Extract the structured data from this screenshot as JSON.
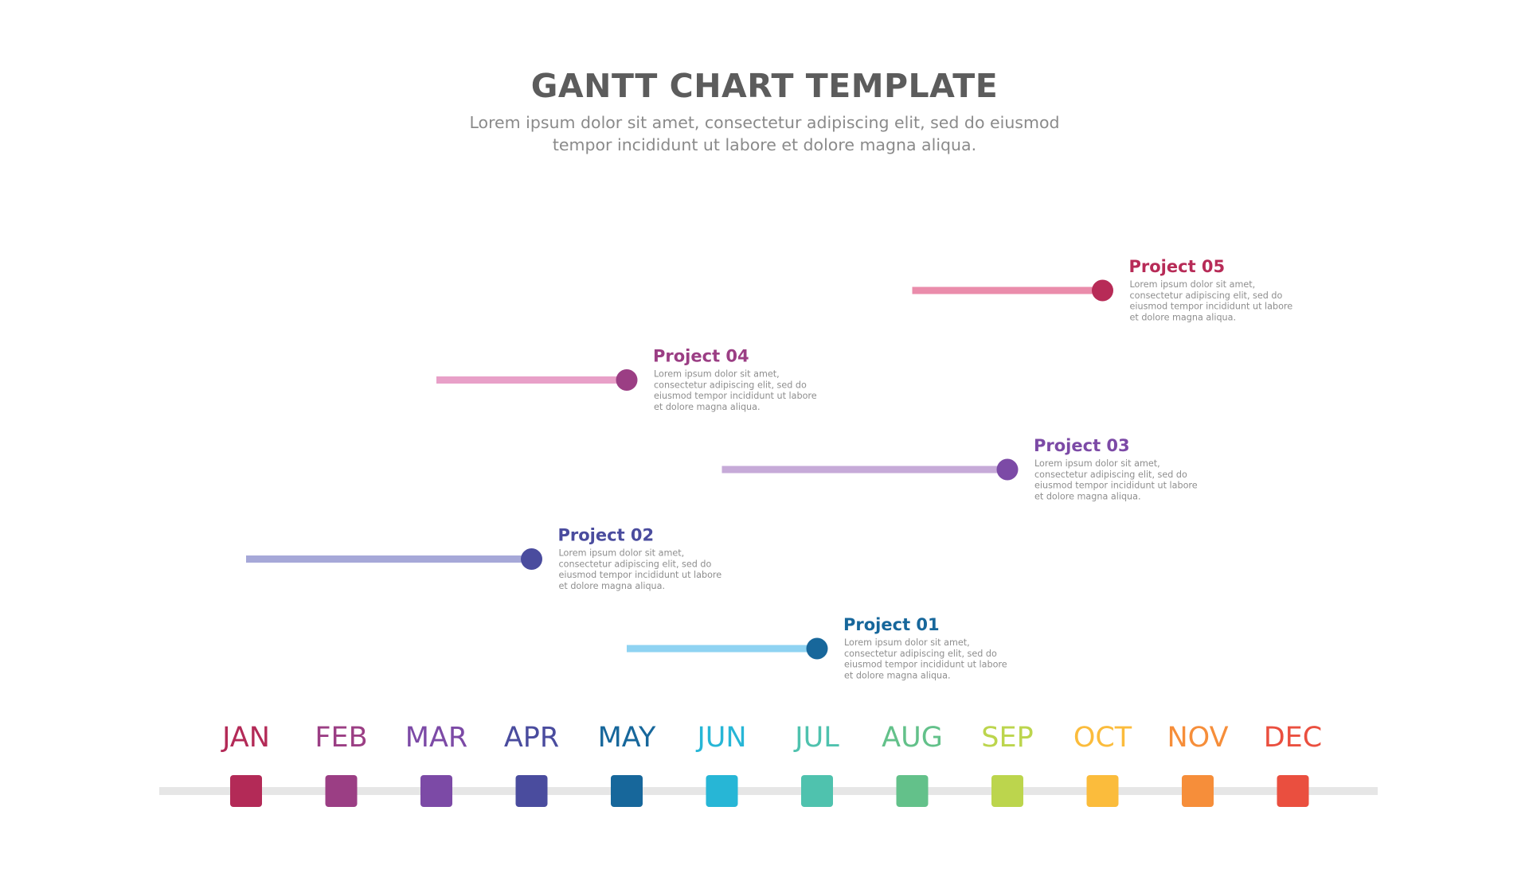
{
  "header": {
    "title": "GANTT CHART TEMPLATE",
    "subtitle": "Lorem ipsum dolor sit amet, consectetur adipiscing elit, sed do eiusmod tempor incididunt ut labore et dolore magna aliqua."
  },
  "chart_data": {
    "type": "gantt",
    "title": "GANTT CHART TEMPLATE",
    "months": [
      {
        "label": "JAN",
        "color": "#b32a57"
      },
      {
        "label": "FEB",
        "color": "#9b3e84"
      },
      {
        "label": "MAR",
        "color": "#7c4aa6"
      },
      {
        "label": "APR",
        "color": "#4a4c9e"
      },
      {
        "label": "MAY",
        "color": "#17679b"
      },
      {
        "label": "JUN",
        "color": "#27b6d6"
      },
      {
        "label": "JUL",
        "color": "#4fc2ae"
      },
      {
        "label": "AUG",
        "color": "#63c18a"
      },
      {
        "label": "SEP",
        "color": "#bcd54d"
      },
      {
        "label": "OCT",
        "color": "#fbbc3c"
      },
      {
        "label": "NOV",
        "color": "#f68e3a"
      },
      {
        "label": "DEC",
        "color": "#ea4f3f"
      }
    ],
    "tasks": [
      {
        "name": "Project 05",
        "start": 7.0,
        "end": 9.0,
        "bar_color": "#ea8cab",
        "dot_color": "#b72b57",
        "title_color": "#b72b57",
        "description": [
          "Lorem ipsum dolor sit amet,",
          "consectetur adipiscing elit, sed do",
          "eiusmod tempor incididunt ut labore",
          "et dolore magna aliqua."
        ]
      },
      {
        "name": "Project 04",
        "start": 2.0,
        "end": 4.0,
        "bar_color": "#e8a0c8",
        "dot_color": "#9b3e84",
        "title_color": "#9b3e84",
        "description": [
          "Lorem ipsum dolor sit amet,",
          "consectetur adipiscing elit, sed do",
          "eiusmod tempor incididunt ut labore",
          "et dolore magna aliqua."
        ]
      },
      {
        "name": "Project 03",
        "start": 5.0,
        "end": 8.0,
        "bar_color": "#c6aad8",
        "dot_color": "#7c4aa6",
        "title_color": "#7c4aa6",
        "description": [
          "Lorem ipsum dolor sit amet,",
          "consectetur adipiscing elit, sed do",
          "eiusmod tempor incididunt ut labore",
          "et dolore magna aliqua."
        ]
      },
      {
        "name": "Project 02",
        "start": 0.0,
        "end": 3.0,
        "bar_color": "#a6a8d8",
        "dot_color": "#4a4c9e",
        "title_color": "#4a4c9e",
        "description": [
          "Lorem ipsum dolor sit amet,",
          "consectetur adipiscing elit, sed do",
          "eiusmod tempor incididunt ut labore",
          "et dolore magna aliqua."
        ]
      },
      {
        "name": "Project 01",
        "start": 4.0,
        "end": 6.0,
        "bar_color": "#8fd3f2",
        "dot_color": "#17679b",
        "title_color": "#17679b",
        "description": [
          "Lorem ipsum dolor sit amet,",
          "consectetur adipiscing elit, sed do",
          "eiusmod tempor incididunt ut labore",
          "et dolore magna aliqua."
        ]
      }
    ],
    "axis_line_color": "#e6e6e6"
  }
}
